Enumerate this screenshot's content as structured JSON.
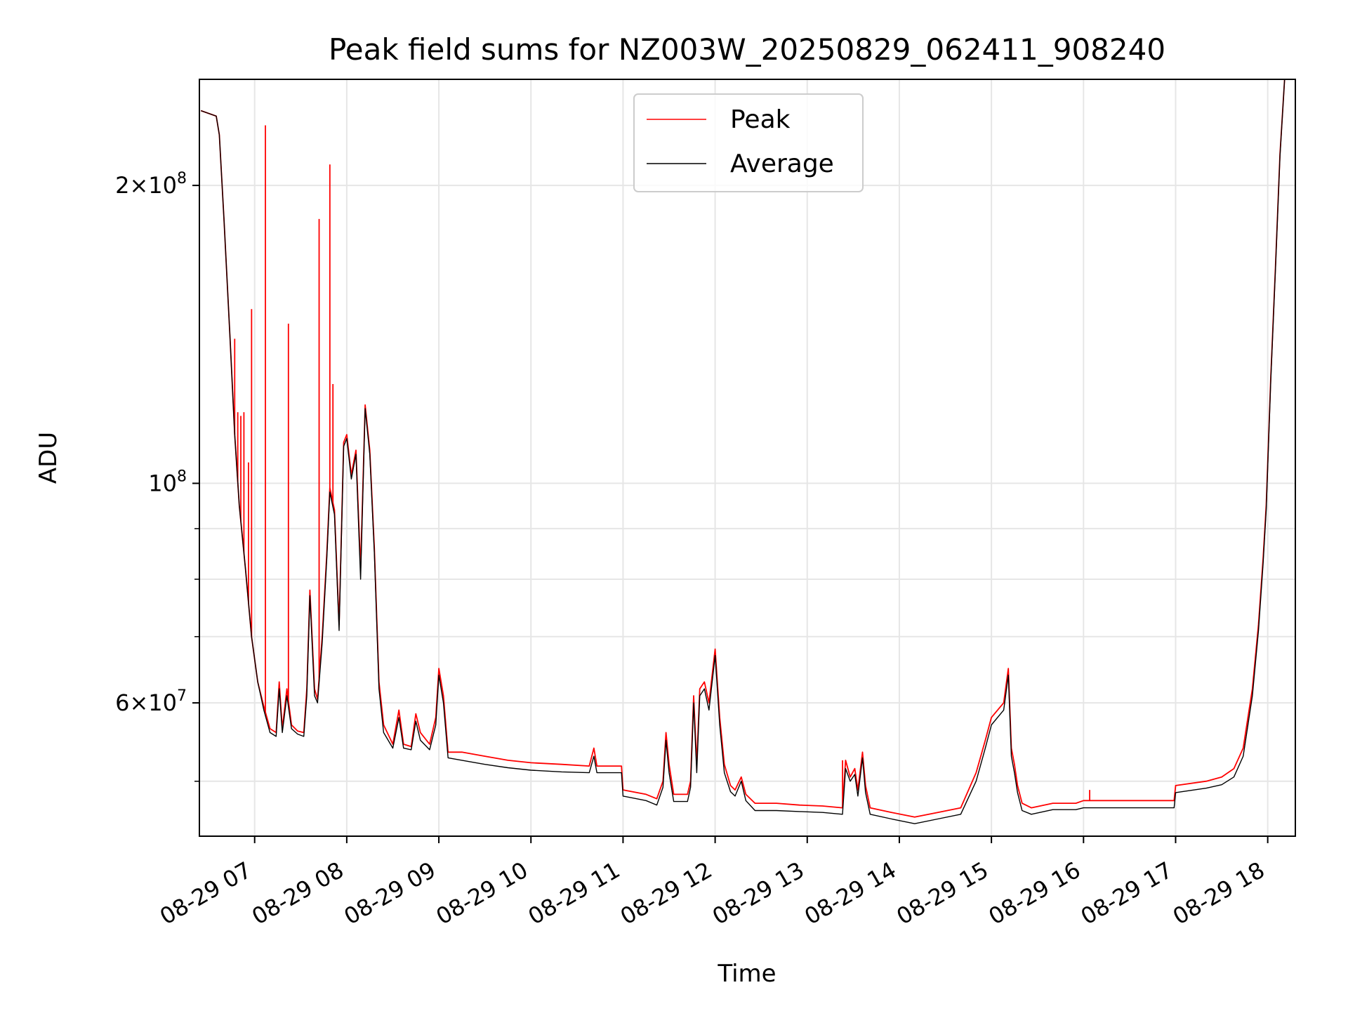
{
  "chart_data": {
    "type": "line",
    "title": "Peak field sums for NZ003W_20250829_062411_908240",
    "xlabel": "Time",
    "ylabel": "ADU",
    "y_scale": "log",
    "grid": true,
    "legend_position": "upper center",
    "xlim": [
      "2025-08-29 06:24",
      "2025-08-29 18:18"
    ],
    "ylim": [
      44000000,
      256000000
    ],
    "x_ticks": [
      "08-29 07",
      "08-29 08",
      "08-29 09",
      "08-29 10",
      "08-29 11",
      "08-29 12",
      "08-29 13",
      "08-29 14",
      "08-29 15",
      "08-29 16",
      "08-29 17",
      "08-29 18"
    ],
    "y_tick_labels": [
      {
        "value": 60000000,
        "mantissa": "6",
        "exponent": "7"
      },
      {
        "value": 100000000,
        "mantissa": "",
        "exponent": "8"
      },
      {
        "value": 200000000,
        "mantissa": "2",
        "exponent": "8"
      }
    ],
    "x_tick_prefix": "2025-",
    "series": [
      {
        "name": "Peak",
        "color": "#ff0000",
        "points": [
          [
            "06:25",
            238000000
          ],
          [
            "06:35",
            235000000
          ],
          [
            "06:37",
            225000000
          ],
          [
            "06:40",
            185000000
          ],
          [
            "06:44",
            140000000
          ],
          [
            "06:47",
            112000000
          ],
          [
            "06:50",
            95000000
          ],
          [
            "06:54",
            82000000
          ],
          [
            "06:58",
            70000000
          ],
          [
            "07:02",
            63000000
          ],
          [
            "07:06",
            59500000
          ],
          [
            "07:10",
            56500000
          ],
          [
            "07:14",
            56000000
          ],
          [
            "07:16",
            63000000
          ],
          [
            "07:18",
            56500000
          ],
          [
            "07:21",
            62000000
          ],
          [
            "07:24",
            57000000
          ],
          [
            "07:28",
            56200000
          ],
          [
            "07:32",
            56000000
          ],
          [
            "07:34",
            62000000
          ],
          [
            "07:36",
            78000000
          ],
          [
            "07:39",
            62000000
          ],
          [
            "07:41",
            60500000
          ],
          [
            "07:44",
            70000000
          ],
          [
            "07:47",
            85000000
          ],
          [
            "07:49",
            99000000
          ],
          [
            "07:52",
            94000000
          ],
          [
            "07:55",
            72000000
          ],
          [
            "07:58",
            110000000
          ],
          [
            "08:00",
            112000000
          ],
          [
            "08:03",
            102000000
          ],
          [
            "08:06",
            108000000
          ],
          [
            "08:09",
            82000000
          ],
          [
            "08:12",
            120000000
          ],
          [
            "08:15",
            108000000
          ],
          [
            "08:18",
            86000000
          ],
          [
            "08:21",
            63000000
          ],
          [
            "08:24",
            57000000
          ],
          [
            "08:30",
            54500000
          ],
          [
            "08:34",
            59000000
          ],
          [
            "08:37",
            54500000
          ],
          [
            "08:42",
            54200000
          ],
          [
            "08:45",
            58500000
          ],
          [
            "08:48",
            56000000
          ],
          [
            "08:54",
            54500000
          ],
          [
            "08:58",
            58000000
          ],
          [
            "09:00",
            65000000
          ],
          [
            "09:03",
            61000000
          ],
          [
            "09:06",
            53500000
          ],
          [
            "09:15",
            53500000
          ],
          [
            "09:30",
            53000000
          ],
          [
            "09:45",
            52500000
          ],
          [
            "10:00",
            52200000
          ],
          [
            "10:20",
            52000000
          ],
          [
            "10:38",
            51800000
          ],
          [
            "10:41",
            54000000
          ],
          [
            "10:43",
            51800000
          ],
          [
            "10:59",
            51800000
          ],
          [
            "11:00",
            49000000
          ],
          [
            "11:15",
            48500000
          ],
          [
            "11:22",
            48000000
          ],
          [
            "11:26",
            50000000
          ],
          [
            "11:28",
            56000000
          ],
          [
            "11:30",
            52000000
          ],
          [
            "11:33",
            48500000
          ],
          [
            "11:42",
            48500000
          ],
          [
            "11:44",
            50000000
          ],
          [
            "11:46",
            61000000
          ],
          [
            "11:48",
            52000000
          ],
          [
            "11:50",
            62000000
          ],
          [
            "11:53",
            63000000
          ],
          [
            "11:56",
            60000000
          ],
          [
            "12:00",
            68000000
          ],
          [
            "12:03",
            58000000
          ],
          [
            "12:06",
            52000000
          ],
          [
            "12:10",
            49500000
          ],
          [
            "12:13",
            49000000
          ],
          [
            "12:17",
            50500000
          ],
          [
            "12:20",
            48500000
          ],
          [
            "12:26",
            47500000
          ],
          [
            "12:40",
            47500000
          ],
          [
            "12:55",
            47300000
          ],
          [
            "13:10",
            47200000
          ],
          [
            "13:23",
            47000000
          ],
          [
            "13:25",
            52500000
          ],
          [
            "13:28",
            50500000
          ],
          [
            "13:31",
            51500000
          ],
          [
            "13:33",
            49000000
          ],
          [
            "13:36",
            53500000
          ],
          [
            "13:38",
            49500000
          ],
          [
            "13:41",
            47000000
          ],
          [
            "13:55",
            46500000
          ],
          [
            "14:10",
            46000000
          ],
          [
            "14:25",
            46500000
          ],
          [
            "14:40",
            47000000
          ],
          [
            "14:50",
            51000000
          ],
          [
            "14:56",
            55000000
          ],
          [
            "15:00",
            58000000
          ],
          [
            "15:08",
            60000000
          ],
          [
            "15:11",
            65000000
          ],
          [
            "15:13",
            54000000
          ],
          [
            "15:15",
            52000000
          ],
          [
            "15:17",
            49500000
          ],
          [
            "15:20",
            47500000
          ],
          [
            "15:26",
            47000000
          ],
          [
            "15:40",
            47500000
          ],
          [
            "15:55",
            47500000
          ],
          [
            "16:00",
            47800000
          ],
          [
            "16:20",
            47800000
          ],
          [
            "16:40",
            47800000
          ],
          [
            "16:59",
            47800000
          ],
          [
            "17:00",
            49500000
          ],
          [
            "17:20",
            50000000
          ],
          [
            "17:30",
            50500000
          ],
          [
            "17:38",
            51500000
          ],
          [
            "17:44",
            54000000
          ],
          [
            "17:50",
            62000000
          ],
          [
            "17:54",
            72000000
          ],
          [
            "17:57",
            84000000
          ],
          [
            "17:59",
            95000000
          ],
          [
            "18:02",
            128000000
          ],
          [
            "18:05",
            165000000
          ],
          [
            "18:08",
            215000000
          ],
          [
            "18:11",
            256000000
          ]
        ],
        "spikes": [
          [
            "06:47",
            140000000
          ],
          [
            "06:49",
            118000000
          ],
          [
            "06:51",
            117000000
          ],
          [
            "06:53",
            118000000
          ],
          [
            "06:56",
            105000000
          ],
          [
            "06:58",
            150000000
          ],
          [
            "07:07",
            230000000
          ],
          [
            "07:22",
            145000000
          ],
          [
            "07:42",
            185000000
          ],
          [
            "07:49",
            210000000
          ],
          [
            "07:51",
            126000000
          ],
          [
            "13:23",
            52500000
          ],
          [
            "16:04",
            49000000
          ]
        ]
      },
      {
        "name": "Average",
        "color": "#000000",
        "points": [
          [
            "06:25",
            238000000
          ],
          [
            "06:35",
            235000000
          ],
          [
            "06:37",
            225000000
          ],
          [
            "06:40",
            185000000
          ],
          [
            "06:44",
            140000000
          ],
          [
            "06:47",
            112000000
          ],
          [
            "06:50",
            95000000
          ],
          [
            "06:54",
            82000000
          ],
          [
            "06:58",
            70000000
          ],
          [
            "07:02",
            63000000
          ],
          [
            "07:06",
            59000000
          ],
          [
            "07:10",
            56000000
          ],
          [
            "07:14",
            55500000
          ],
          [
            "07:16",
            62000000
          ],
          [
            "07:18",
            56000000
          ],
          [
            "07:21",
            61000000
          ],
          [
            "07:24",
            56500000
          ],
          [
            "07:28",
            55800000
          ],
          [
            "07:32",
            55500000
          ],
          [
            "07:34",
            61000000
          ],
          [
            "07:36",
            77000000
          ],
          [
            "07:39",
            61000000
          ],
          [
            "07:41",
            60000000
          ],
          [
            "07:44",
            69000000
          ],
          [
            "07:47",
            84000000
          ],
          [
            "07:49",
            98000000
          ],
          [
            "07:52",
            93000000
          ],
          [
            "07:55",
            71000000
          ],
          [
            "07:58",
            109000000
          ],
          [
            "08:00",
            111000000
          ],
          [
            "08:03",
            101000000
          ],
          [
            "08:06",
            107000000
          ],
          [
            "08:09",
            80000000
          ],
          [
            "08:12",
            119000000
          ],
          [
            "08:15",
            107000000
          ],
          [
            "08:18",
            85000000
          ],
          [
            "08:21",
            62000000
          ],
          [
            "08:24",
            56000000
          ],
          [
            "08:30",
            54000000
          ],
          [
            "08:34",
            58000000
          ],
          [
            "08:37",
            54000000
          ],
          [
            "08:42",
            53800000
          ],
          [
            "08:45",
            57500000
          ],
          [
            "08:48",
            55000000
          ],
          [
            "08:54",
            53800000
          ],
          [
            "08:58",
            57000000
          ],
          [
            "09:00",
            64000000
          ],
          [
            "09:03",
            60000000
          ],
          [
            "09:06",
            52800000
          ],
          [
            "09:15",
            52500000
          ],
          [
            "09:30",
            52000000
          ],
          [
            "09:45",
            51600000
          ],
          [
            "10:00",
            51300000
          ],
          [
            "10:20",
            51100000
          ],
          [
            "10:38",
            51000000
          ],
          [
            "10:41",
            53000000
          ],
          [
            "10:43",
            51000000
          ],
          [
            "10:59",
            51000000
          ],
          [
            "11:00",
            48300000
          ],
          [
            "11:15",
            47800000
          ],
          [
            "11:22",
            47300000
          ],
          [
            "11:26",
            49300000
          ],
          [
            "11:28",
            55000000
          ],
          [
            "11:30",
            51000000
          ],
          [
            "11:33",
            47700000
          ],
          [
            "11:42",
            47700000
          ],
          [
            "11:44",
            49300000
          ],
          [
            "11:46",
            60000000
          ],
          [
            "11:48",
            51000000
          ],
          [
            "11:50",
            61000000
          ],
          [
            "11:53",
            62000000
          ],
          [
            "11:56",
            59000000
          ],
          [
            "12:00",
            67000000
          ],
          [
            "12:03",
            57000000
          ],
          [
            "12:06",
            51000000
          ],
          [
            "12:10",
            48800000
          ],
          [
            "12:13",
            48300000
          ],
          [
            "12:17",
            50000000
          ],
          [
            "12:20",
            47800000
          ],
          [
            "12:26",
            46700000
          ],
          [
            "12:40",
            46700000
          ],
          [
            "12:55",
            46600000
          ],
          [
            "13:10",
            46500000
          ],
          [
            "13:23",
            46300000
          ],
          [
            "13:25",
            51500000
          ],
          [
            "13:28",
            50000000
          ],
          [
            "13:31",
            50800000
          ],
          [
            "13:33",
            48300000
          ],
          [
            "13:36",
            52800000
          ],
          [
            "13:38",
            48700000
          ],
          [
            "13:41",
            46300000
          ],
          [
            "13:55",
            45800000
          ],
          [
            "14:10",
            45300000
          ],
          [
            "14:25",
            45800000
          ],
          [
            "14:40",
            46300000
          ],
          [
            "14:50",
            50000000
          ],
          [
            "14:56",
            54000000
          ],
          [
            "15:00",
            57000000
          ],
          [
            "15:08",
            59000000
          ],
          [
            "15:11",
            64000000
          ],
          [
            "15:13",
            53000000
          ],
          [
            "15:15",
            51000000
          ],
          [
            "15:17",
            48700000
          ],
          [
            "15:20",
            46700000
          ],
          [
            "15:26",
            46300000
          ],
          [
            "15:40",
            46800000
          ],
          [
            "15:55",
            46800000
          ],
          [
            "16:00",
            47000000
          ],
          [
            "16:20",
            47000000
          ],
          [
            "16:40",
            47000000
          ],
          [
            "16:59",
            47000000
          ],
          [
            "17:00",
            48700000
          ],
          [
            "17:20",
            49200000
          ],
          [
            "17:30",
            49600000
          ],
          [
            "17:38",
            50500000
          ],
          [
            "17:44",
            53000000
          ],
          [
            "17:50",
            61000000
          ],
          [
            "17:54",
            71000000
          ],
          [
            "17:57",
            83000000
          ],
          [
            "17:59",
            94000000
          ],
          [
            "18:02",
            127000000
          ],
          [
            "18:05",
            164000000
          ],
          [
            "18:08",
            214000000
          ],
          [
            "18:11",
            256000000
          ]
        ]
      }
    ]
  }
}
